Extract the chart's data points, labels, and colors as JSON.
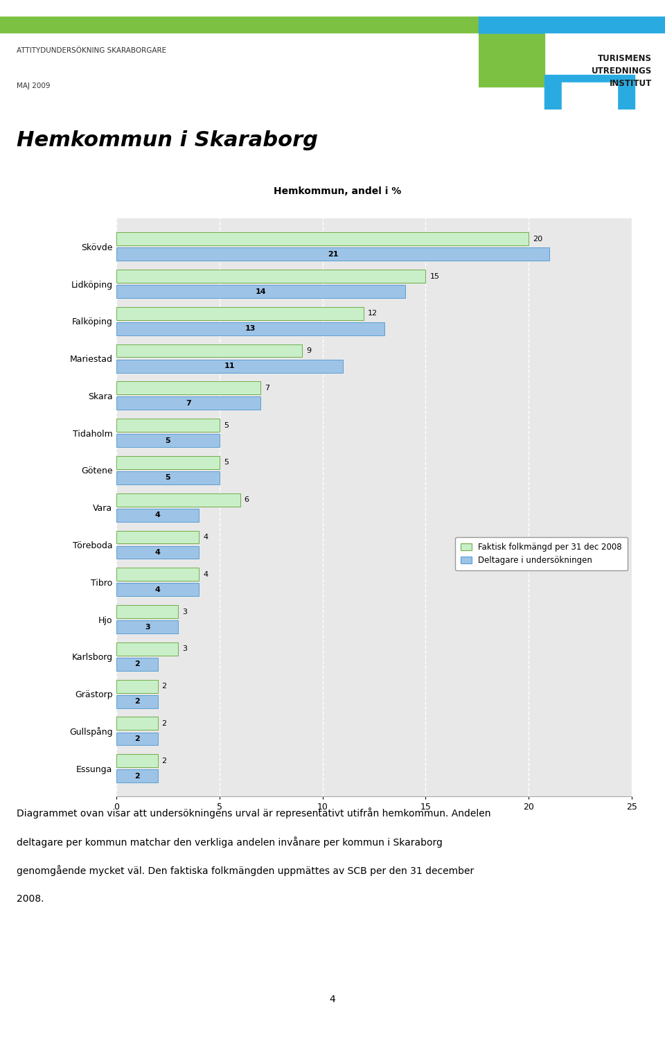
{
  "title_main": "Hemkommun i Skaraborg",
  "chart_title": "Hemkommun, andel i %",
  "header_line1": "ATTITYDUNDERSÖKNING SKARABORGARE",
  "header_line2": "MAJ 2009",
  "logo_text_line1": "TURISMENS",
  "logo_text_line2": "UTREDNINGS",
  "logo_text_line3": "INSTITUT",
  "categories": [
    "Skövde",
    "Lidköping",
    "Falköping",
    "Mariestad",
    "Skara",
    "Tidaholm",
    "Götene",
    "Vara",
    "Töreboda",
    "Tibro",
    "Hjo",
    "Karlsborg",
    "Grästorp",
    "Gullspång",
    "Essunga"
  ],
  "faktisk": [
    20,
    15,
    12,
    9,
    7,
    5,
    5,
    6,
    4,
    4,
    3,
    3,
    2,
    2,
    2
  ],
  "deltagare": [
    21,
    14,
    13,
    11,
    7,
    5,
    5,
    4,
    4,
    4,
    3,
    2,
    2,
    2,
    2
  ],
  "color_faktisk": "#c8efc8",
  "color_faktisk_border": "#70ad47",
  "color_deltagare": "#9dc3e6",
  "color_deltagare_border": "#5a9fd4",
  "bar_height": 0.35,
  "xlim": [
    0,
    25
  ],
  "xticks": [
    0,
    5,
    10,
    15,
    20,
    25
  ],
  "legend_label1": "Faktisk folkmängd per 31 dec 2008",
  "legend_label2": "Deltagare i undersökningen",
  "body_text_lines": [
    "Diagrammet ovan visar att undersökningens urval är representativt utifrån hemkommun. Andelen",
    "deltagare per kommun matchar den verkliga andelen invånare per kommun i Skaraborg",
    "genomgående mycket väl. Den faktiska folkmängden uppmättes av SCB per den 31 december",
    "2008."
  ],
  "page_number": "4",
  "background_color": "#ffffff",
  "plot_bg_color": "#e8e8e8",
  "grid_color": "#ffffff",
  "stripe_green": "#7dc143",
  "stripe_blue": "#29abe2",
  "logo_green": "#7dc143",
  "logo_blue": "#29abe2",
  "bar_label_fontsize": 8,
  "axis_label_fontsize": 9,
  "title_fontsize": 22,
  "chart_title_fontsize": 10
}
